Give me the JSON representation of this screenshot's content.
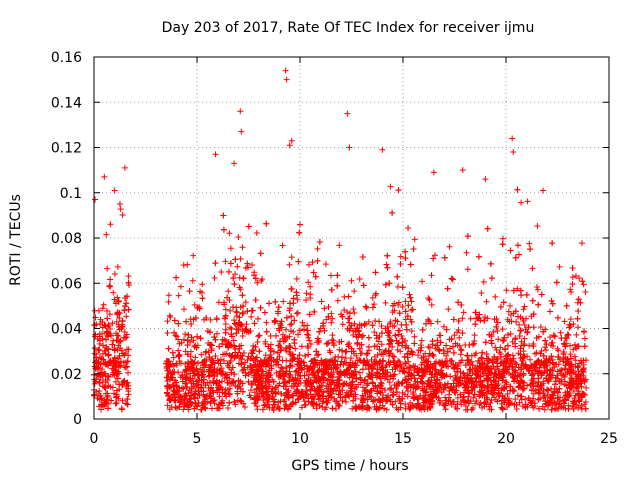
{
  "chart_data": {
    "type": "scatter",
    "title": "Day 203 of 2017, Rate Of TEC Index for receiver ijmu",
    "xlabel": "GPS time / hours",
    "ylabel": "ROTI / TECUs",
    "xlim": [
      0,
      25
    ],
    "ylim": [
      0,
      0.16
    ],
    "xticks": [
      0,
      5,
      10,
      15,
      20,
      25
    ],
    "yticks": [
      0,
      0.02,
      0.04,
      0.06,
      0.08,
      0.1,
      0.12,
      0.14,
      0.16
    ],
    "xtick_labels": [
      "0",
      "5",
      "10",
      "15",
      "20",
      "25"
    ],
    "ytick_labels": [
      "0",
      "0.02",
      "0.04",
      "0.06",
      "0.08",
      "0.1",
      "0.12",
      "0.14",
      "0.16"
    ],
    "grid": true,
    "marker": "+",
    "marker_color": "#ff0000",
    "data_gap": [
      1.7,
      3.5
    ],
    "notable_points": [
      {
        "x": 9.3,
        "y": 0.154
      },
      {
        "x": 9.35,
        "y": 0.15
      },
      {
        "x": 7.1,
        "y": 0.136
      },
      {
        "x": 7.15,
        "y": 0.127
      },
      {
        "x": 12.3,
        "y": 0.135
      },
      {
        "x": 9.6,
        "y": 0.123
      },
      {
        "x": 9.5,
        "y": 0.121
      },
      {
        "x": 14.0,
        "y": 0.119
      },
      {
        "x": 20.3,
        "y": 0.124
      },
      {
        "x": 20.35,
        "y": 0.118
      },
      {
        "x": 12.4,
        "y": 0.12
      },
      {
        "x": 5.9,
        "y": 0.117
      },
      {
        "x": 6.8,
        "y": 0.113
      },
      {
        "x": 1.5,
        "y": 0.111
      },
      {
        "x": 0.5,
        "y": 0.107
      },
      {
        "x": 17.9,
        "y": 0.11
      },
      {
        "x": 16.5,
        "y": 0.109
      },
      {
        "x": 19.0,
        "y": 0.106
      },
      {
        "x": 21.8,
        "y": 0.101
      },
      {
        "x": 0.05,
        "y": 0.097
      },
      {
        "x": 1.0,
        "y": 0.101
      }
    ]
  }
}
